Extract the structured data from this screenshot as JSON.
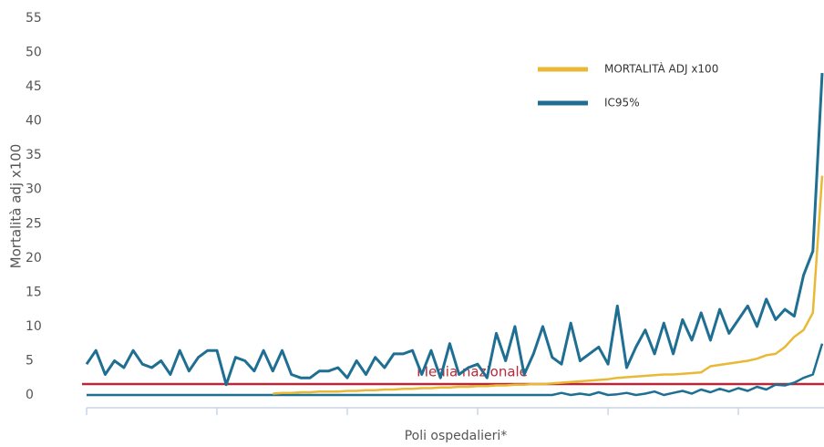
{
  "chart_data": {
    "type": "line",
    "y_label": "Mortalità adj x100",
    "x_label": "Poli ospedalieri*",
    "ylim": [
      0,
      55
    ],
    "yticks": [
      0,
      5,
      10,
      15,
      20,
      25,
      30,
      35,
      40,
      45,
      50,
      55
    ],
    "categories": [
      null,
      null,
      null,
      null,
      null,
      null,
      null,
      null,
      null,
      null,
      null,
      null,
      null,
      null,
      null,
      null,
      null,
      null,
      null,
      null,
      null,
      null,
      null,
      null,
      null,
      null,
      null,
      null,
      null,
      null,
      null,
      null,
      null,
      null,
      null,
      null,
      null,
      null,
      null,
      null,
      null,
      null,
      null,
      null,
      null,
      null,
      null,
      null,
      null,
      null,
      null,
      null,
      null,
      null,
      null,
      null,
      null,
      null,
      null,
      null,
      null,
      null,
      null,
      null,
      null,
      null,
      null,
      null,
      null,
      null,
      null,
      null,
      null,
      null,
      null,
      null,
      null,
      null,
      null,
      null
    ],
    "series": [
      {
        "name": "MORTALITÀ ADJ x100",
        "color": "#e9b936",
        "values": [
          null,
          null,
          null,
          null,
          null,
          null,
          null,
          null,
          null,
          null,
          null,
          null,
          null,
          null,
          null,
          null,
          null,
          null,
          null,
          null,
          0.2,
          0.3,
          0.3,
          0.4,
          0.4,
          0.5,
          0.5,
          0.5,
          0.6,
          0.6,
          0.7,
          0.7,
          0.8,
          0.8,
          0.9,
          0.9,
          1,
          1,
          1.1,
          1.1,
          1.2,
          1.2,
          1.3,
          1.3,
          1.4,
          1.4,
          1.5,
          1.5,
          1.6,
          1.6,
          1.7,
          1.8,
          1.9,
          2,
          2.1,
          2.2,
          2.3,
          2.5,
          2.6,
          2.7,
          2.8,
          2.9,
          3,
          3,
          3.1,
          3.2,
          3.3,
          4.2,
          4.4,
          4.6,
          4.8,
          5,
          5.3,
          5.8,
          6,
          7,
          8.5,
          9.5,
          12,
          32
        ]
      },
      {
        "name": "IC95%",
        "color": "#1f6f93",
        "values": [
          4.5,
          6.5,
          3,
          5,
          4,
          6.5,
          4.5,
          4,
          5,
          3,
          6.5,
          3.5,
          5.5,
          6.5,
          6.5,
          1.5,
          5.5,
          5,
          3.5,
          6.5,
          3.5,
          6.5,
          3,
          2.5,
          2.5,
          3.5,
          3.5,
          4,
          2.5,
          5,
          3,
          5.5,
          4,
          6,
          6,
          6.5,
          3,
          6.5,
          2.5,
          7.5,
          3,
          4,
          4.5,
          2.5,
          9,
          5,
          10,
          3,
          6,
          10,
          5.5,
          4.5,
          10.5,
          5,
          6,
          7,
          4.5,
          13,
          4,
          7,
          9.5,
          6,
          10.5,
          6,
          11,
          8,
          12,
          8,
          12.5,
          9,
          11,
          13,
          10,
          14,
          11,
          12.5,
          11.5,
          17.5,
          21,
          47
        ],
        "lower": [
          0,
          0,
          0,
          0,
          0,
          0,
          0,
          0,
          0,
          0,
          0,
          0,
          0,
          0,
          0,
          0,
          0,
          0,
          0,
          0,
          0,
          0,
          0,
          0,
          0,
          0,
          0,
          0,
          0,
          0,
          0,
          0,
          0,
          0,
          0,
          0,
          0,
          0,
          0,
          0,
          0,
          0,
          0,
          0,
          0,
          0,
          0,
          0,
          0,
          0,
          0,
          0.3,
          0,
          0.2,
          0,
          0.4,
          0,
          0.1,
          0.3,
          0,
          0.2,
          0.5,
          0,
          0.3,
          0.6,
          0.2,
          0.8,
          0.4,
          0.9,
          0.5,
          1,
          0.6,
          1.2,
          0.8,
          1.5,
          1.4,
          1.8,
          2.5,
          3,
          7.5
        ]
      }
    ],
    "reference_line": {
      "value": 1.6,
      "label": "Media nazionale",
      "color": "#b5293a"
    }
  }
}
